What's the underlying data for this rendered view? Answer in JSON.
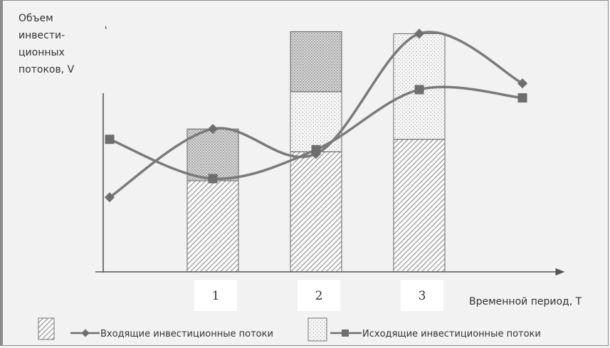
{
  "chart_data": {
    "type": "bar+line",
    "ylabel_lines": [
      "Объем",
      "инвести-",
      "ционных",
      "потоков, V"
    ],
    "xlabel": "Временной период, T",
    "categories": [
      "1",
      "2",
      "3"
    ],
    "bar_segments": [
      {
        "name": "hatched",
        "values": [
          4.4,
          5.8,
          6.4
        ]
      },
      {
        "name": "dotted",
        "values": [
          0,
          2.9,
          5.1
        ]
      },
      {
        "name": "crosshatched",
        "values": [
          2.5,
          2.9,
          0
        ]
      }
    ],
    "series": [
      {
        "name": "Входящие инвестиционные потоки",
        "marker": "diamond",
        "points": [
          [
            0,
            3.6
          ],
          [
            1,
            6.9
          ],
          [
            2,
            5.7
          ],
          [
            3,
            11.5
          ],
          [
            4,
            9.1
          ]
        ]
      },
      {
        "name": "Исходящие инвестиционные потоки",
        "marker": "square",
        "points": [
          [
            0,
            6.4
          ],
          [
            1,
            4.5
          ],
          [
            2,
            5.9
          ],
          [
            3,
            8.8
          ],
          [
            4,
            8.4
          ]
        ]
      }
    ],
    "legend": {
      "placement": "bottom",
      "items": [
        "Входящие инвестиционные потоки",
        "Исходящие инвестиционные потоки"
      ]
    },
    "colors": {
      "line": "#7a7a7a",
      "marker": "#6e6e6e",
      "axis": "#555555",
      "bar_edge": "#666666"
    }
  }
}
